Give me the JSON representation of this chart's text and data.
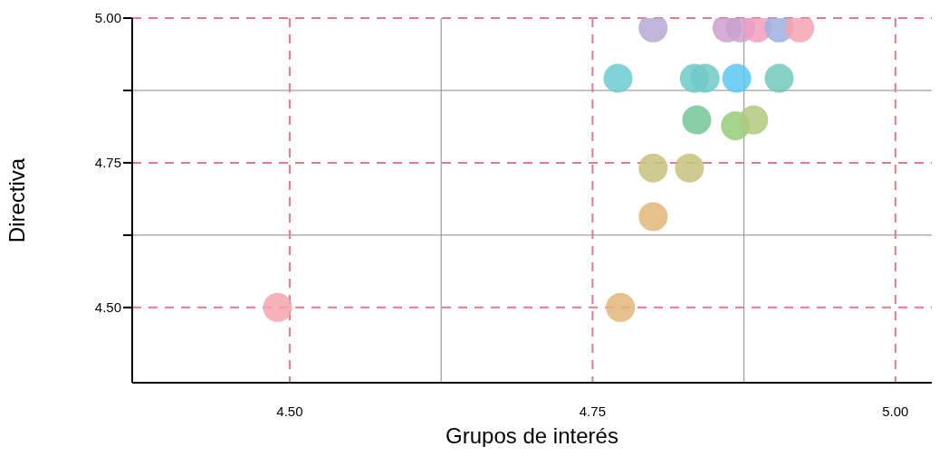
{
  "chart_data": {
    "type": "scatter",
    "xlabel": "Grupos de interés",
    "ylabel": "Directiva",
    "x": [
      4.49,
      4.773,
      4.8,
      4.8,
      4.83,
      4.836,
      4.868,
      4.883,
      4.771,
      4.834,
      4.843,
      4.869,
      4.904,
      4.8,
      4.861,
      4.872,
      4.886,
      4.904,
      4.921
    ],
    "series": [
      {
        "values": [
          4.5,
          4.5,
          4.657,
          4.741,
          4.741,
          4.824,
          4.814,
          4.824,
          4.896,
          4.896,
          4.896,
          4.896,
          4.896,
          4.983,
          4.983,
          4.983,
          4.983,
          4.983,
          4.983
        ],
        "colors": [
          "#f5a3ad",
          "#e2b677",
          "#e2b677",
          "#c5c27e",
          "#c5c27e",
          "#72c495",
          "#94cc78",
          "#b0c97c",
          "#6ccad3",
          "#6ecac8",
          "#6ecac8",
          "#5bc8f2",
          "#72c8b8",
          "#b7a8d5",
          "#cf9fcc",
          "#c8a2cc",
          "#f29ec0",
          "#9cb1df",
          "#f5a3b0"
        ]
      }
    ],
    "xlim": [
      4.37,
      5.03
    ],
    "xticks": [
      {
        "value": 4.5,
        "label": "4.50"
      },
      {
        "value": 4.625,
        "label": null
      },
      4.75,
      {
        "value": 4.875,
        "label": null
      },
      {
        "value": 5.0,
        "label": "5.00"
      }
    ],
    "ylim": [
      4.37,
      5.0
    ],
    "yticks": [
      {
        "value": 4.5,
        "label": "4.50"
      },
      {
        "value": 4.625,
        "label": null
      },
      4.75,
      {
        "value": 4.875,
        "label": null
      },
      {
        "value": 5.0,
        "label": "5.00"
      }
    ],
    "grid": true,
    "marker": "circle",
    "legend": false
  }
}
